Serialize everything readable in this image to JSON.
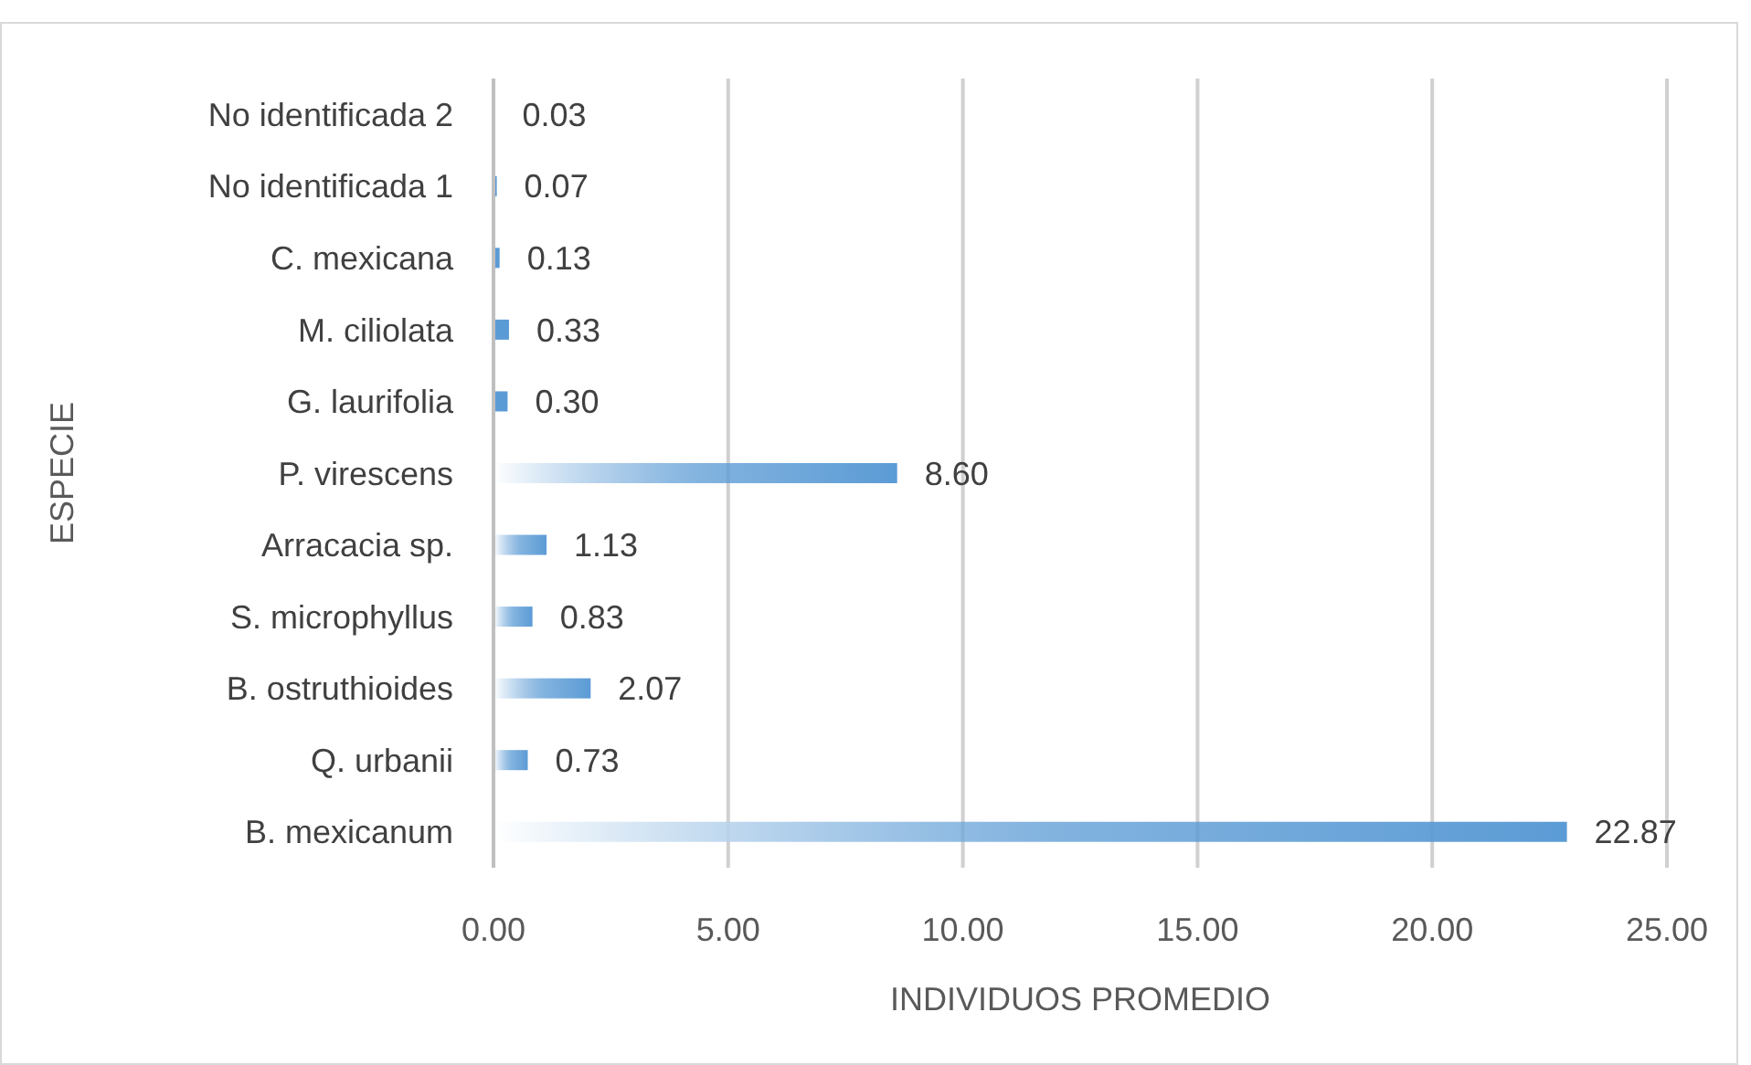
{
  "chart_data": {
    "type": "bar",
    "orientation": "horizontal",
    "xlabel": "INDIVIDUOS PROMEDIO",
    "ylabel": "ESPECIE",
    "categories": [
      "No identificada 2",
      "No identificada 1",
      "C. mexicana",
      "M. ciliolata",
      "G. laurifolia",
      "P. virescens",
      "Arracacia sp.",
      "S. microphyllus",
      "B. ostruthioides",
      "Q. urbanii",
      "B. mexicanum"
    ],
    "values": [
      0.03,
      0.07,
      0.13,
      0.33,
      0.3,
      8.6,
      1.13,
      0.83,
      2.07,
      0.73,
      22.87
    ],
    "value_labels": [
      "0.03",
      "0.07",
      "0.13",
      "0.33",
      "0.30",
      "8.60",
      "1.13",
      "0.83",
      "2.07",
      "0.73",
      "22.87"
    ],
    "color": "#5b9bd5",
    "xlim": [
      0,
      25
    ],
    "xticks": [
      {
        "value": 0,
        "label": "0.00"
      },
      {
        "value": 5,
        "label": "5.00"
      },
      {
        "value": 10,
        "label": "10.00"
      },
      {
        "value": 15,
        "label": "15.00"
      },
      {
        "value": 20,
        "label": "20.00"
      },
      {
        "value": 25,
        "label": "25.00"
      }
    ],
    "grid": "x"
  }
}
